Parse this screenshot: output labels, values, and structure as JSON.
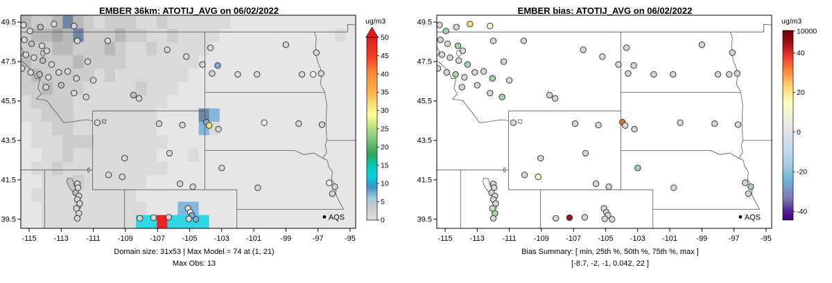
{
  "panels": [
    {
      "title": "EMBER 36km: ATOTIJ_AVG on 06/02/2022",
      "subtitle1": "Domain size: 31x53 | Max Model = 74 at (1, 21)",
      "subtitle2": "Max Obs: 13",
      "legend_label": "AQS",
      "colorbar": {
        "label": "ug/m3",
        "has_arrow": true,
        "arrow_color": "#e31a1c",
        "ticks": [
          {
            "t": "50",
            "f": 0
          },
          {
            "t": "45",
            "f": 0.1
          },
          {
            "t": "40",
            "f": 0.2
          },
          {
            "t": "35",
            "f": 0.3
          },
          {
            "t": "30",
            "f": 0.4
          },
          {
            "t": "25",
            "f": 0.5
          },
          {
            "t": "20",
            "f": 0.6
          },
          {
            "t": "15",
            "f": 0.7
          },
          {
            "t": "10",
            "f": 0.8
          },
          {
            "t": "5",
            "f": 0.9
          },
          {
            "t": "0",
            "f": 1
          }
        ],
        "stops": [
          [
            0,
            "#e31a1c"
          ],
          [
            0.1,
            "#f03b20"
          ],
          [
            0.2,
            "#fd8d3c"
          ],
          [
            0.3,
            "#feb24c"
          ],
          [
            0.36,
            "#fed976"
          ],
          [
            0.42,
            "#ffff99"
          ],
          [
            0.48,
            "#c7e77f"
          ],
          [
            0.56,
            "#78c679"
          ],
          [
            0.64,
            "#31a354"
          ],
          [
            0.7,
            "#00c9b1"
          ],
          [
            0.76,
            "#00d3e0"
          ],
          [
            0.82,
            "#4292c6"
          ],
          [
            0.88,
            "#9ecae1"
          ],
          [
            0.93,
            "#cccccc"
          ],
          [
            1,
            "#dedede"
          ]
        ]
      }
    },
    {
      "title": "EMBER bias: ATOTIJ_AVG on 06/02/2022",
      "subtitle1": "Bias Summary: [ min, 25th %, 50th %, 75th %, max ]",
      "subtitle2": "[-8.7,  -2,  -1,  0.042,  22 ]",
      "legend_label": "AQS",
      "colorbar": {
        "label": "ug/m3",
        "has_arrow": false,
        "ticks": [
          {
            "t": "10000",
            "f": 0.003
          },
          {
            "t": "40",
            "f": 0.118
          },
          {
            "t": "20",
            "f": 0.327
          },
          {
            "t": "0",
            "f": 0.536
          },
          {
            "t": "-20",
            "f": 0.745
          },
          {
            "t": "-40",
            "f": 0.954
          }
        ],
        "stops": [
          [
            0,
            "#67000d"
          ],
          [
            0.07,
            "#a50f15"
          ],
          [
            0.14,
            "#ef3b2c"
          ],
          [
            0.22,
            "#fd8d3c"
          ],
          [
            0.3,
            "#fed976"
          ],
          [
            0.38,
            "#ffffbf"
          ],
          [
            0.5,
            "#e8e8e8"
          ],
          [
            0.62,
            "#c6dbef"
          ],
          [
            0.72,
            "#9ecae1"
          ],
          [
            0.8,
            "#6baed6"
          ],
          [
            0.88,
            "#807dba"
          ],
          [
            0.95,
            "#54278f"
          ],
          [
            1,
            "#3f007d"
          ]
        ]
      }
    }
  ],
  "axes": {
    "x_ticks": [
      "-115",
      "-113",
      "-111",
      "-109",
      "-107",
      "-105",
      "-103",
      "-101",
      "-99",
      "-97",
      "-95"
    ],
    "x_values": [
      -115,
      -113,
      -111,
      -109,
      -107,
      -105,
      -103,
      -101,
      -99,
      -97,
      -95
    ],
    "y_ticks": [
      "39.5",
      "41.5",
      "43.5",
      "45.5",
      "47.5",
      "49.5"
    ],
    "y_values": [
      39.5,
      41.5,
      43.5,
      45.5,
      47.5,
      49.5
    ]
  },
  "chart_data": [
    {
      "type": "heatmap",
      "title": "EMBER 36km: ATOTIJ_AVG on 06/02/2022",
      "units": "ug/m3",
      "value_range": [
        0,
        50
      ],
      "domain_size": "31x53",
      "max_model": "74 at (1, 21)",
      "max_obs": 13,
      "palette": {
        "1": "#e6e6e6",
        "2": "#dadada",
        "3": "#cccccc",
        "4": "#b9b9b9",
        "5": "#a6a6a6",
        "B": "#6f87a6",
        "b": "#85b6dc",
        "c": "#2fd8e8",
        "r": "#ee2020",
        "y": "#f7e14c"
      },
      "grid_rows": [
        [
          "4334B432",
          "33322322",
          "22221111",
          "11111111"
        ],
        [
          "34454B33",
          "34332232",
          "22211111",
          "11111121"
        ],
        [
          "33344333",
          "43223222",
          "22111111",
          "11111111"
        ],
        [
          "43333433",
          "33222222",
          "21111111",
          "11111111"
        ],
        [
          "34333332",
          "32222222",
          "11111111",
          "11111111"
        ],
        [
          "33433322",
          "22232221",
          "11111111",
          "11111111"
        ],
        [
          "23333222",
          "22222211",
          "11111111",
          "11111111"
        ],
        [
          "22333222",
          "22222111",
          "1Bb11111",
          "11111111"
        ],
        [
          "12233222",
          "22222111",
          "1b211111",
          "11111111"
        ],
        [
          "12223332",
          "22222211",
          "11111111",
          "11111111"
        ],
        [
          "11223222",
          "22222111",
          "21111111",
          "11111111"
        ],
        [
          "12232222",
          "22222211",
          "11111111",
          "11111111"
        ],
        [
          "11222322",
          "22221111",
          "11111111",
          "11111111"
        ],
        [
          "12222222",
          "22211111",
          "11111111",
          "11111111"
        ],
        [
          "11222222",
          "2222111b",
          "b1111111",
          "11111111"
        ],
        [
          "11222222",
          "222ccrcc",
          "cc111111",
          "11111111"
        ]
      ]
    },
    {
      "type": "scatter",
      "title": "EMBER bias: ATOTIJ_AVG on 06/02/2022",
      "units": "ug/m3",
      "bias_summary": {
        "labels": "[ min, 25th %, 50th %, 75th %, max ]",
        "values": [
          -8.7,
          -2,
          -1,
          0.042,
          22
        ]
      },
      "point_palette": {
        "g": "#d6d6d6",
        "d": "#bdbdbd",
        "w": "#f2f2f2",
        "b": "#79aed2",
        "G": "#a4d6a0",
        "y": "#f2e06a",
        "p": "#fbf8c0",
        "o": "#e8731e",
        "r": "#9e1316"
      },
      "points": [
        [
          -115.35,
          49.35,
          "g",
          "g"
        ],
        [
          -114.95,
          49.05,
          "g",
          "G"
        ],
        [
          -114.3,
          49.25,
          "d",
          "g"
        ],
        [
          -113.45,
          49.4,
          "g",
          "y"
        ],
        [
          -112.2,
          49.3,
          "g",
          "p"
        ],
        [
          -115.3,
          48.6,
          "g",
          "g"
        ],
        [
          -114.85,
          48.4,
          "d",
          "g"
        ],
        [
          -114.2,
          48.3,
          "g",
          "G"
        ],
        [
          -113.9,
          48.05,
          "g",
          "g"
        ],
        [
          -115.2,
          47.85,
          "g",
          "g"
        ],
        [
          -114.7,
          47.7,
          "g",
          "g"
        ],
        [
          -114.15,
          47.55,
          "d",
          "g"
        ],
        [
          -113.6,
          47.35,
          "g",
          "G"
        ],
        [
          -115.45,
          47.15,
          "g",
          "g"
        ],
        [
          -114.9,
          46.95,
          "g",
          "g"
        ],
        [
          -114.35,
          46.85,
          "d",
          "G"
        ],
        [
          -113.8,
          46.7,
          "g",
          "g"
        ],
        [
          -113.15,
          46.95,
          "g",
          "g"
        ],
        [
          -112.6,
          47.0,
          "g",
          "g"
        ],
        [
          -112.05,
          46.65,
          "g",
          "G"
        ],
        [
          -113.0,
          46.3,
          "d",
          "g"
        ],
        [
          -113.95,
          46.2,
          "g",
          "g"
        ],
        [
          -112.2,
          45.9,
          "g",
          "g"
        ],
        [
          -111.45,
          45.7,
          "g",
          "G"
        ],
        [
          -111.0,
          46.55,
          "g",
          "g"
        ],
        [
          -112.0,
          48.55,
          "g",
          "g"
        ],
        [
          -111.35,
          47.5,
          "g",
          "g"
        ],
        [
          -110.1,
          48.55,
          "g",
          "g"
        ],
        [
          -106.4,
          48.1,
          "g",
          "g"
        ],
        [
          -105.2,
          47.75,
          "g",
          "g"
        ],
        [
          -103.7,
          48.2,
          "g",
          "g"
        ],
        [
          -104.2,
          47.35,
          "g",
          "g"
        ],
        [
          -103.25,
          47.3,
          "b",
          "g"
        ],
        [
          -103.6,
          46.9,
          "g",
          "g"
        ],
        [
          -99.0,
          48.35,
          "g",
          "g"
        ],
        [
          -97.1,
          47.95,
          "g",
          "g"
        ],
        [
          -97.3,
          46.85,
          "w",
          "g"
        ],
        [
          -96.8,
          46.9,
          "g",
          "g"
        ],
        [
          -100.8,
          46.85,
          "g",
          "g"
        ],
        [
          -98.0,
          46.85,
          "g",
          "g"
        ],
        [
          -102.0,
          46.85,
          "g",
          "g"
        ],
        [
          -108.5,
          45.8,
          "d",
          "g"
        ],
        [
          -108.15,
          45.63,
          "g",
          "g"
        ],
        [
          -100.35,
          44.4,
          "w",
          "g"
        ],
        [
          -98.2,
          44.35,
          "g",
          "g"
        ],
        [
          -96.75,
          44.3,
          "g",
          "g"
        ],
        [
          -103.95,
          44.42,
          "b",
          "o"
        ],
        [
          -103.78,
          44.26,
          "y",
          "g"
        ],
        [
          -103.2,
          44.07,
          "g",
          "g"
        ],
        [
          -110.75,
          44.4,
          "g",
          "g"
        ],
        [
          -106.9,
          44.35,
          "g",
          "g"
        ],
        [
          -105.45,
          44.28,
          "g",
          "g"
        ],
        [
          -106.25,
          42.85,
          "g",
          "g"
        ],
        [
          -109.05,
          42.6,
          "g",
          "g"
        ],
        [
          -110.05,
          41.75,
          "g",
          "g"
        ],
        [
          -109.2,
          41.65,
          "g",
          "p"
        ],
        [
          -105.6,
          41.3,
          "g",
          "g"
        ],
        [
          -104.8,
          41.15,
          "g",
          "g"
        ],
        [
          -103.0,
          42.1,
          "g",
          "G"
        ],
        [
          -100.75,
          41.1,
          "g",
          "g"
        ],
        [
          -96.3,
          41.35,
          "w",
          "g"
        ],
        [
          -95.95,
          41.15,
          "g",
          "G"
        ],
        [
          -96.1,
          40.8,
          "g",
          "g"
        ],
        [
          -112.0,
          41.3,
          "g",
          "g"
        ],
        [
          -111.95,
          41.1,
          "g",
          "g"
        ],
        [
          -112.1,
          40.85,
          "d",
          "g"
        ],
        [
          -111.9,
          40.68,
          "g",
          "g"
        ],
        [
          -112.0,
          40.5,
          "g",
          "g"
        ],
        [
          -111.85,
          40.3,
          "g",
          "g"
        ],
        [
          -112.05,
          40.05,
          "g",
          "g"
        ],
        [
          -111.9,
          39.8,
          "g",
          "G"
        ],
        [
          -112.0,
          39.55,
          "g",
          "g"
        ],
        [
          -108.1,
          39.55,
          "g",
          "g"
        ],
        [
          -107.25,
          39.58,
          "g",
          "r"
        ],
        [
          -106.3,
          39.6,
          "g",
          "g"
        ],
        [
          -105.1,
          40.05,
          "g",
          "g"
        ],
        [
          -104.95,
          39.85,
          "w",
          "g"
        ],
        [
          -104.85,
          39.7,
          "b",
          "g"
        ],
        [
          -105.05,
          39.52,
          "g",
          "g"
        ],
        [
          -104.6,
          39.5,
          "b",
          "g"
        ]
      ]
    }
  ]
}
